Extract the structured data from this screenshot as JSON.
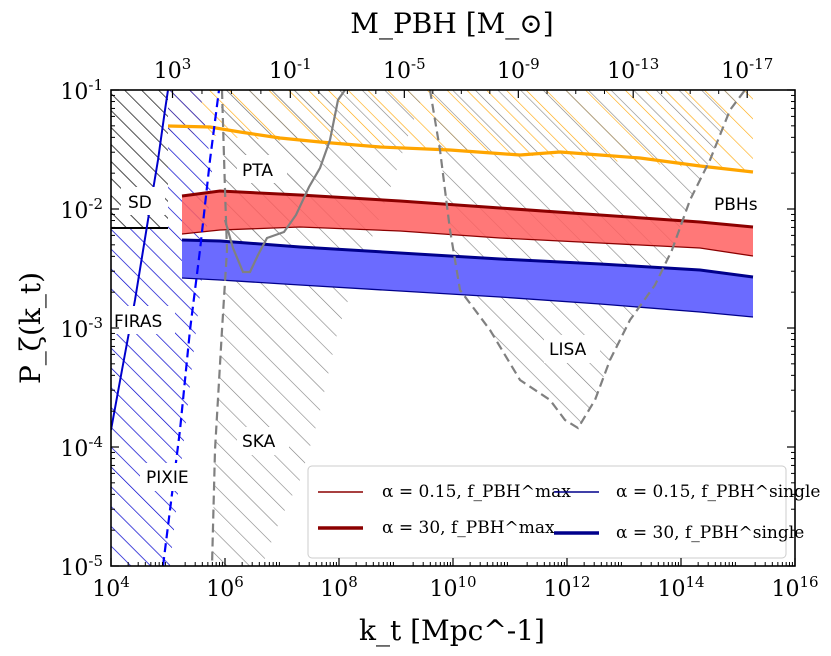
{
  "chart_data": {
    "type": "area",
    "title": "",
    "xlabel": "k_t [Mpc^-1]",
    "ylabel": "P_ζ(k_t)",
    "top_xlabel": "M_PBH [M_⊙]",
    "xscale": "log",
    "yscale": "log",
    "xlim": [
      10000.0,
      1e+16
    ],
    "ylim": [
      1e-05,
      0.1
    ],
    "x_ticks": [
      {
        "value": 10000.0,
        "label": "10^4"
      },
      {
        "value": 1000000.0,
        "label": "10^6"
      },
      {
        "value": 100000000.0,
        "label": "10^8"
      },
      {
        "value": 10000000000.0,
        "label": "10^10"
      },
      {
        "value": 1000000000000.0,
        "label": "10^12"
      },
      {
        "value": 100000000000000.0,
        "label": "10^14"
      },
      {
        "value": 1e+16,
        "label": "10^16"
      }
    ],
    "y_ticks": [
      {
        "value": 1e-05,
        "label": "10^-5"
      },
      {
        "value": 0.0001,
        "label": "10^-4"
      },
      {
        "value": 0.001,
        "label": "10^-3"
      },
      {
        "value": 0.01,
        "label": "10^-2"
      },
      {
        "value": 0.1,
        "label": "10^-1"
      }
    ],
    "top_ticks": [
      {
        "k": 120000.0,
        "label": "10^3"
      },
      {
        "k": 14000000.0,
        "label": "10^-1"
      },
      {
        "k": 1400000000.0,
        "label": "10^-5"
      },
      {
        "k": 140000000000.0,
        "label": "10^-9"
      },
      {
        "k": 14500000000000.0,
        "label": "10^-13"
      },
      {
        "k": 1450000000000000.0,
        "label": "10^-17"
      }
    ],
    "regions": [
      {
        "name": "SD",
        "label": "SD",
        "color": "#000000",
        "hatch": true,
        "boundary": [
          [
            10000.0,
            0.1
          ],
          [
            100000.0,
            0.1
          ],
          [
            100000.0,
            0.007
          ],
          [
            10000.0,
            0.007
          ]
        ]
      },
      {
        "name": "FIRAS",
        "label": "FIRAS",
        "color": "#0000cc",
        "hatch": true,
        "boundary": [
          [
            10000.0,
            0.007
          ],
          [
            100000.0,
            0.007
          ],
          [
            160000.0,
            0.005
          ],
          [
            250000.0,
            0.002
          ],
          [
            320000.0,
            0.0003
          ],
          [
            600000.0,
            1e-05
          ],
          [
            10000.0,
            1e-05
          ]
        ]
      },
      {
        "name": "PIXIE",
        "label": "PIXIE",
        "color": "#0000ff",
        "hatch": false,
        "line": [
          [
            75000.0,
            1e-05
          ],
          [
            120000.0,
            0.0001
          ],
          [
            220000.0,
            0.001
          ],
          [
            330000.0,
            0.01
          ],
          [
            600000.0,
            0.1
          ]
        ]
      },
      {
        "name": "PTA",
        "label": "PTA",
        "color": "#808080",
        "hatch": true
      },
      {
        "name": "SKA",
        "label": "SKA",
        "color": "#808080",
        "hatch": true
      },
      {
        "name": "LISA",
        "label": "LISA",
        "color": "#808080",
        "hatch": true
      },
      {
        "name": "PBHs",
        "label": "PBHs",
        "color": "#ffa500",
        "hatch": true,
        "boundary_lower": [
          [
            100000.0,
            0.035
          ],
          [
            1000000000.0,
            0.027
          ],
          [
            10000000000000.0,
            0.022
          ],
          [
            1500000000000000.0,
            0.019
          ]
        ]
      }
    ],
    "series": [
      {
        "name": "alpha_015_fmax",
        "legend": "α = 0.15,  f_PBH^max",
        "color": "#8b0000",
        "width": "thin",
        "x": [
          130000.0,
          1000000.0,
          100000000.0,
          10000000000.0,
          1000000000000.0,
          100000000000000.0,
          1500000000000000.0
        ],
        "y": [
          0.006,
          0.0065,
          0.006,
          0.005,
          0.0044,
          0.0037,
          0.0031
        ]
      },
      {
        "name": "alpha_30_fmax",
        "legend": "α = 30,  f_PBH^max",
        "color": "#8b0000",
        "width": "thick",
        "x": [
          130000.0,
          1000000.0,
          100000000.0,
          10000000000.0,
          1000000000000.0,
          100000000000000.0,
          1500000000000000.0
        ],
        "y": [
          0.013,
          0.0135,
          0.012,
          0.0105,
          0.0095,
          0.0083,
          0.007
        ]
      },
      {
        "name": "alpha_015_fsingle",
        "legend": "α = 0.15,  f_PBH^single",
        "color": "#00008b",
        "width": "thin",
        "x": [
          130000.0,
          1000000.0,
          100000000.0,
          10000000000.0,
          1000000000000.0,
          100000000000000.0,
          1500000000000000.0
        ],
        "y": [
          0.0026,
          0.00235,
          0.0021,
          0.00185,
          0.0016,
          0.0014,
          0.00125
        ]
      },
      {
        "name": "alpha_30_fsingle",
        "legend": "α = 30,  f_PBH^single",
        "color": "#00008b",
        "width": "thick",
        "x": [
          130000.0,
          1000000.0,
          100000000.0,
          10000000000.0,
          1000000000000.0,
          100000000000000.0,
          1500000000000000.0
        ],
        "y": [
          0.0056,
          0.0051,
          0.0044,
          0.00385,
          0.0034,
          0.003,
          0.0027
        ]
      },
      {
        "name": "pbh_constraint",
        "legend": "",
        "color": "#ffa500",
        "width": "thick",
        "x": [
          100000.0,
          1000000.0,
          100000000.0,
          10000000000.0,
          1000000000000.0,
          100000000000000.0,
          1500000000000000.0
        ],
        "y": [
          0.05,
          0.045,
          0.037,
          0.032,
          0.027,
          0.026,
          0.021
        ]
      }
    ],
    "fills": [
      {
        "between": [
          "alpha_015_fmax",
          "alpha_30_fmax"
        ],
        "color": "#ff6060"
      },
      {
        "between": [
          "alpha_015_fsingle",
          "alpha_30_fsingle"
        ],
        "color": "#6b6bff"
      }
    ],
    "legend_position": "lower-right",
    "legend_columns": 2
  }
}
